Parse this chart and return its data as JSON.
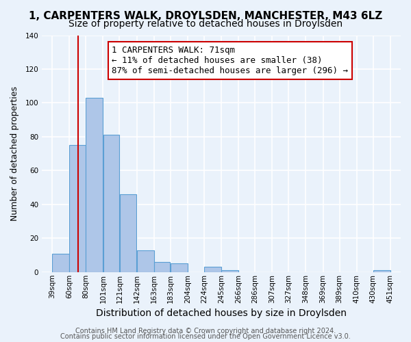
{
  "title1": "1, CARPENTERS WALK, DROYLSDEN, MANCHESTER, M43 6LZ",
  "title2": "Size of property relative to detached houses in Droylsden",
  "xlabel": "Distribution of detached houses by size in Droylsden",
  "ylabel": "Number of detached properties",
  "bin_labels": [
    "39sqm",
    "60sqm",
    "80sqm",
    "101sqm",
    "121sqm",
    "142sqm",
    "163sqm",
    "183sqm",
    "204sqm",
    "224sqm",
    "245sqm",
    "266sqm",
    "286sqm",
    "307sqm",
    "327sqm",
    "348sqm",
    "369sqm",
    "389sqm",
    "410sqm",
    "430sqm",
    "451sqm"
  ],
  "bin_edges": [
    39,
    60,
    80,
    101,
    121,
    142,
    163,
    183,
    204,
    224,
    245,
    266,
    286,
    307,
    327,
    348,
    369,
    389,
    410,
    430,
    451
  ],
  "bar_heights": [
    11,
    75,
    103,
    81,
    46,
    13,
    6,
    5,
    0,
    3,
    1,
    0,
    0,
    0,
    0,
    0,
    0,
    0,
    0,
    1
  ],
  "bar_color": "#aec6e8",
  "bar_edge_color": "#5a9fd4",
  "property_size": 71,
  "vline_color": "#cc0000",
  "ylim": [
    0,
    140
  ],
  "yticks": [
    0,
    20,
    40,
    60,
    80,
    100,
    120,
    140
  ],
  "annotation_title": "1 CARPENTERS WALK: 71sqm",
  "annotation_line1": "← 11% of detached houses are smaller (38)",
  "annotation_line2": "87% of semi-detached houses are larger (296) →",
  "annotation_box_color": "#ffffff",
  "annotation_box_edge": "#cc0000",
  "footer1": "Contains HM Land Registry data © Crown copyright and database right 2024.",
  "footer2": "Contains public sector information licensed under the Open Government Licence v3.0.",
  "bg_color": "#eaf2fb",
  "plot_bg_color": "#eaf2fb",
  "grid_color": "#ffffff",
  "title1_fontsize": 11,
  "title2_fontsize": 10,
  "xlabel_fontsize": 10,
  "ylabel_fontsize": 9,
  "tick_fontsize": 7.5,
  "footer_fontsize": 7,
  "annotation_fontsize": 9
}
